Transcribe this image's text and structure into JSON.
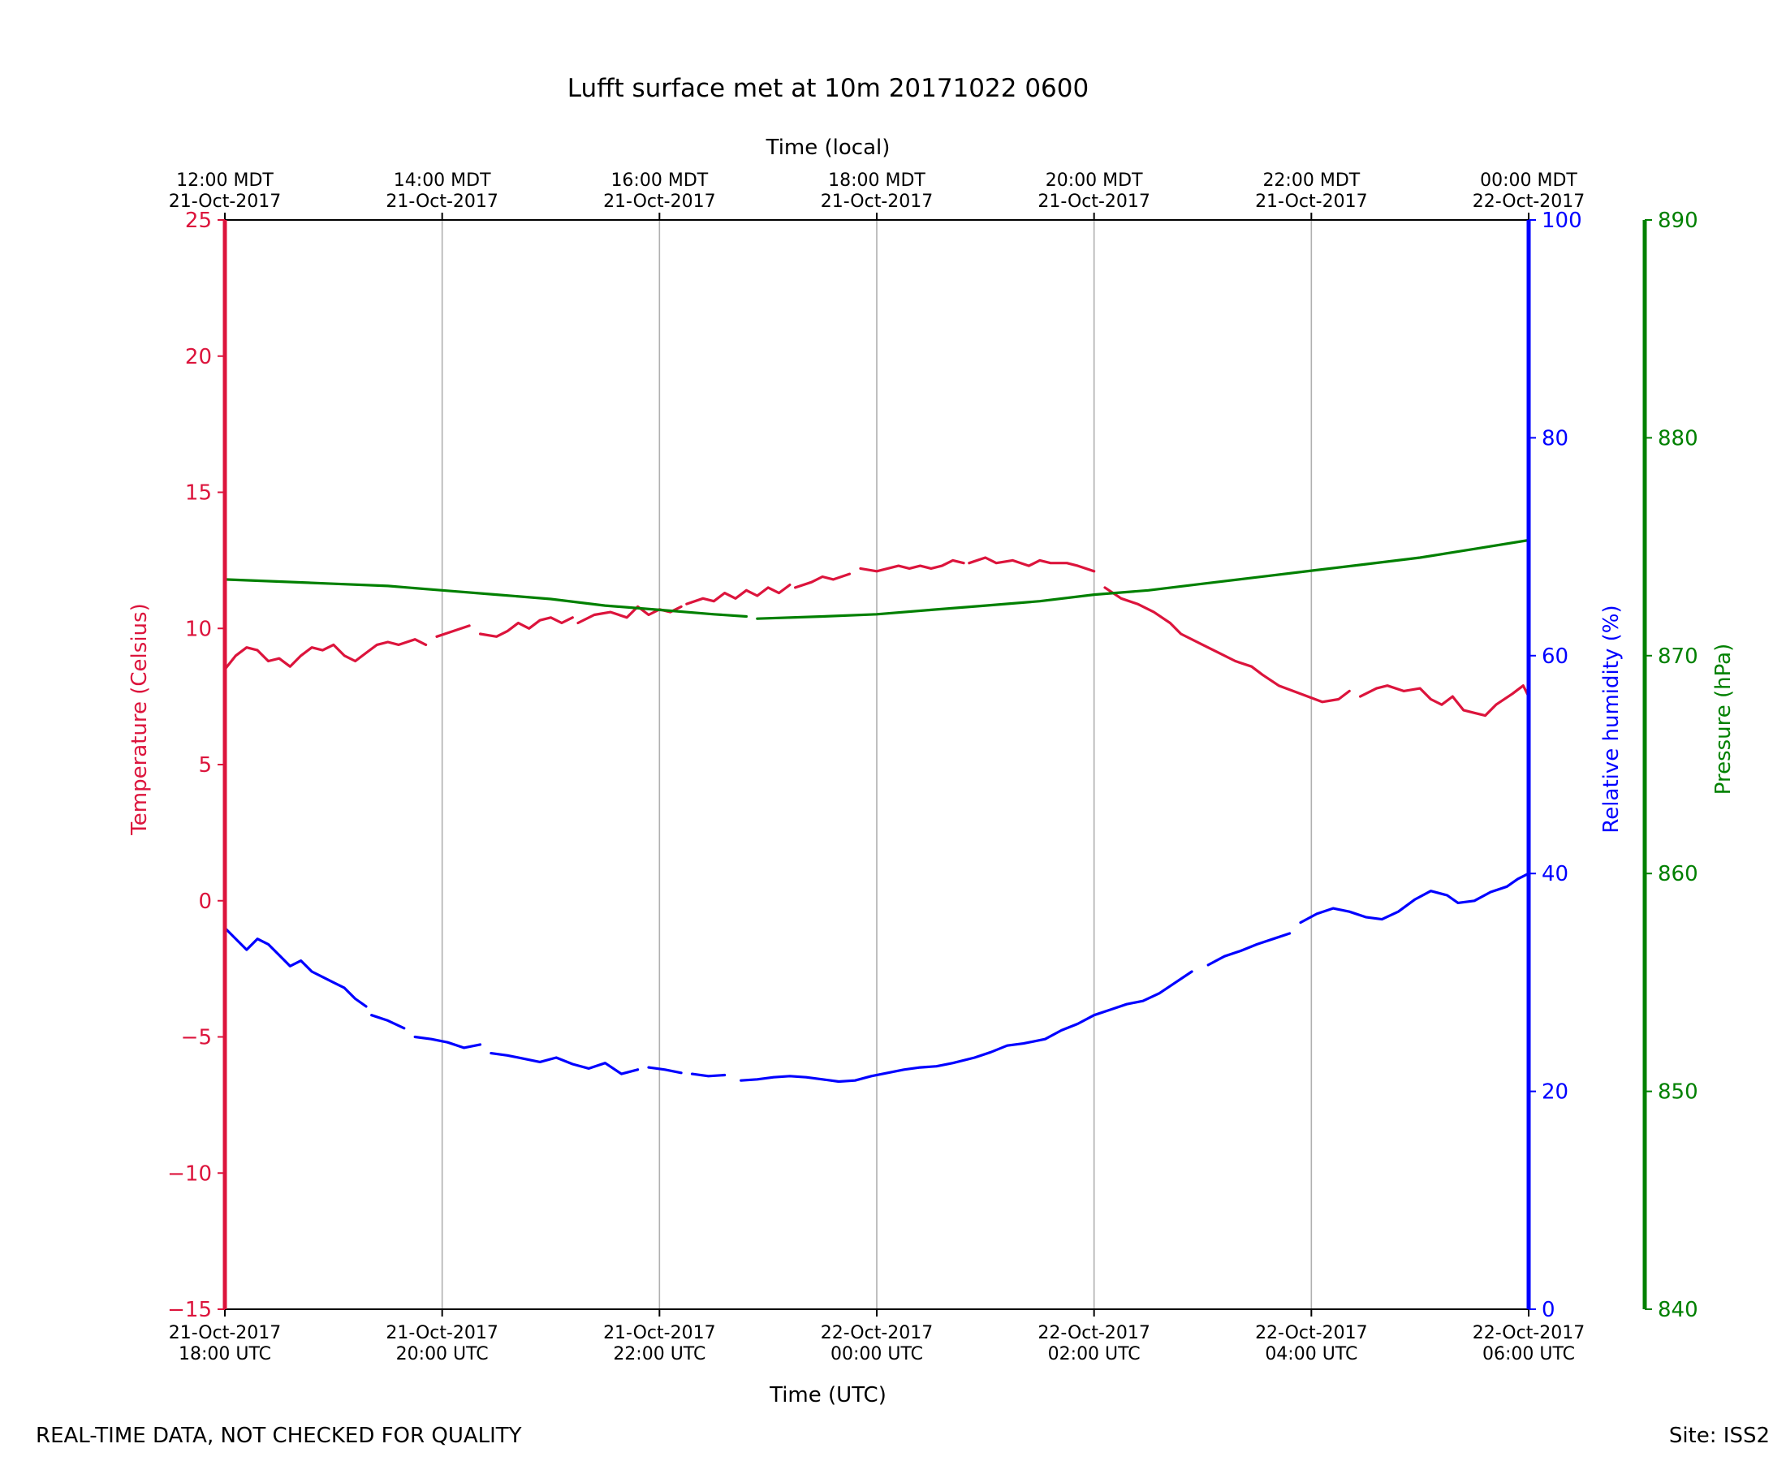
{
  "chart_data": {
    "type": "line",
    "title": "Lufft surface met at 10m 20171022 0600",
    "xlabel": "Time (UTC)",
    "x2label": "Time (local)",
    "x_range_hours": [
      0,
      12
    ],
    "x_ticks_hours": [
      0,
      2,
      4,
      6,
      8,
      10,
      12
    ],
    "x_tick_labels_utc": [
      [
        "21-Oct-2017",
        "18:00 UTC"
      ],
      [
        "21-Oct-2017",
        "20:00 UTC"
      ],
      [
        "21-Oct-2017",
        "22:00 UTC"
      ],
      [
        "22-Oct-2017",
        "00:00 UTC"
      ],
      [
        "22-Oct-2017",
        "02:00 UTC"
      ],
      [
        "22-Oct-2017",
        "04:00 UTC"
      ],
      [
        "22-Oct-2017",
        "06:00 UTC"
      ]
    ],
    "x_tick_labels_local": [
      [
        "12:00 MDT",
        "21-Oct-2017"
      ],
      [
        "14:00 MDT",
        "21-Oct-2017"
      ],
      [
        "16:00 MDT",
        "21-Oct-2017"
      ],
      [
        "18:00 MDT",
        "21-Oct-2017"
      ],
      [
        "20:00 MDT",
        "21-Oct-2017"
      ],
      [
        "22:00 MDT",
        "21-Oct-2017"
      ],
      [
        "00:00 MDT",
        "22-Oct-2017"
      ]
    ],
    "grid": "vertical",
    "axes": {
      "temperature": {
        "label": "Temperature (Celsius)",
        "range": [
          -15,
          25
        ],
        "ticks": [
          -15,
          -10,
          -5,
          0,
          5,
          10,
          15,
          20,
          25
        ],
        "tick_labels": [
          "−15",
          "−10",
          "−5",
          "0",
          "5",
          "10",
          "15",
          "20",
          "25"
        ],
        "color": "#dc143c",
        "side": "left"
      },
      "humidity": {
        "label": "Relative humidity (%)",
        "range": [
          0,
          100
        ],
        "ticks": [
          0,
          20,
          40,
          60,
          80,
          100
        ],
        "tick_labels": [
          "0",
          "20",
          "40",
          "60",
          "80",
          "100"
        ],
        "color": "#0000ff",
        "side": "right"
      },
      "pressure": {
        "label": "Pressure (hPa)",
        "range": [
          840,
          890
        ],
        "ticks": [
          840,
          850,
          860,
          870,
          880,
          890
        ],
        "tick_labels": [
          "840",
          "850",
          "860",
          "870",
          "880",
          "890"
        ],
        "color": "#008000",
        "side": "far-right"
      }
    },
    "series": [
      {
        "name": "Temperature",
        "axis": "temperature",
        "color": "#dc143c",
        "segments": [
          [
            [
              0,
              8.5
            ],
            [
              0.1,
              9.0
            ],
            [
              0.2,
              9.3
            ],
            [
              0.3,
              9.2
            ],
            [
              0.4,
              8.8
            ],
            [
              0.5,
              8.9
            ],
            [
              0.6,
              8.6
            ],
            [
              0.7,
              9.0
            ],
            [
              0.8,
              9.3
            ],
            [
              0.9,
              9.2
            ],
            [
              1.0,
              9.4
            ],
            [
              1.1,
              9.0
            ],
            [
              1.2,
              8.8
            ],
            [
              1.3,
              9.1
            ],
            [
              1.4,
              9.4
            ],
            [
              1.5,
              9.5
            ],
            [
              1.6,
              9.4
            ],
            [
              1.75,
              9.6
            ],
            [
              1.85,
              9.4
            ]
          ],
          [
            [
              1.95,
              9.7
            ],
            [
              2.1,
              9.9
            ],
            [
              2.25,
              10.1
            ]
          ],
          [
            [
              2.35,
              9.8
            ],
            [
              2.5,
              9.7
            ],
            [
              2.6,
              9.9
            ],
            [
              2.7,
              10.2
            ],
            [
              2.8,
              10.0
            ],
            [
              2.9,
              10.3
            ],
            [
              3.0,
              10.4
            ],
            [
              3.1,
              10.2
            ],
            [
              3.2,
              10.4
            ]
          ],
          [
            [
              3.25,
              10.2
            ],
            [
              3.4,
              10.5
            ],
            [
              3.55,
              10.6
            ],
            [
              3.7,
              10.4
            ],
            [
              3.8,
              10.8
            ],
            [
              3.9,
              10.5
            ],
            [
              4.0,
              10.7
            ],
            [
              4.1,
              10.6
            ],
            [
              4.2,
              10.8
            ]
          ],
          [
            [
              4.25,
              10.9
            ],
            [
              4.4,
              11.1
            ],
            [
              4.5,
              11.0
            ],
            [
              4.6,
              11.3
            ],
            [
              4.7,
              11.1
            ],
            [
              4.8,
              11.4
            ],
            [
              4.9,
              11.2
            ],
            [
              5.0,
              11.5
            ],
            [
              5.1,
              11.3
            ],
            [
              5.2,
              11.6
            ]
          ],
          [
            [
              5.25,
              11.5
            ],
            [
              5.4,
              11.7
            ],
            [
              5.5,
              11.9
            ],
            [
              5.6,
              11.8
            ],
            [
              5.75,
              12.0
            ]
          ],
          [
            [
              5.85,
              12.2
            ],
            [
              6.0,
              12.1
            ],
            [
              6.1,
              12.2
            ],
            [
              6.2,
              12.3
            ],
            [
              6.3,
              12.2
            ],
            [
              6.4,
              12.3
            ],
            [
              6.5,
              12.2
            ],
            [
              6.6,
              12.3
            ],
            [
              6.7,
              12.5
            ],
            [
              6.8,
              12.4
            ]
          ],
          [
            [
              6.85,
              12.4
            ],
            [
              7.0,
              12.6
            ],
            [
              7.1,
              12.4
            ],
            [
              7.25,
              12.5
            ],
            [
              7.4,
              12.3
            ],
            [
              7.5,
              12.5
            ],
            [
              7.6,
              12.4
            ],
            [
              7.75,
              12.4
            ],
            [
              7.85,
              12.3
            ],
            [
              8.0,
              12.1
            ]
          ],
          [
            [
              8.1,
              11.5
            ],
            [
              8.25,
              11.1
            ],
            [
              8.4,
              10.9
            ],
            [
              8.55,
              10.6
            ],
            [
              8.7,
              10.2
            ],
            [
              8.8,
              9.8
            ],
            [
              9.0,
              9.4
            ],
            [
              9.15,
              9.1
            ],
            [
              9.3,
              8.8
            ],
            [
              9.45,
              8.6
            ],
            [
              9.55,
              8.3
            ],
            [
              9.7,
              7.9
            ],
            [
              9.9,
              7.6
            ],
            [
              10.1,
              7.3
            ],
            [
              10.25,
              7.4
            ],
            [
              10.35,
              7.7
            ]
          ],
          [
            [
              10.45,
              7.5
            ],
            [
              10.6,
              7.8
            ],
            [
              10.7,
              7.9
            ],
            [
              10.85,
              7.7
            ],
            [
              11.0,
              7.8
            ],
            [
              11.1,
              7.4
            ],
            [
              11.2,
              7.2
            ],
            [
              11.3,
              7.5
            ],
            [
              11.4,
              7.0
            ],
            [
              11.5,
              6.9
            ],
            [
              11.6,
              6.8
            ],
            [
              11.7,
              7.2
            ],
            [
              11.85,
              7.6
            ],
            [
              11.95,
              7.9
            ],
            [
              12.0,
              7.5
            ]
          ]
        ]
      },
      {
        "name": "Relative humidity",
        "axis": "humidity",
        "color": "#0000ff",
        "segments": [
          [
            [
              0,
              35
            ],
            [
              0.1,
              34
            ],
            [
              0.2,
              33
            ],
            [
              0.3,
              34
            ],
            [
              0.4,
              33.5
            ],
            [
              0.5,
              32.5
            ],
            [
              0.6,
              31.5
            ],
            [
              0.7,
              32
            ],
            [
              0.8,
              31
            ],
            [
              0.9,
              30.5
            ],
            [
              1.0,
              30
            ],
            [
              1.1,
              29.5
            ],
            [
              1.2,
              28.5
            ],
            [
              1.3,
              27.8
            ]
          ],
          [
            [
              1.35,
              27.0
            ],
            [
              1.5,
              26.5
            ],
            [
              1.65,
              25.8
            ]
          ],
          [
            [
              1.75,
              25.0
            ],
            [
              1.9,
              24.8
            ],
            [
              2.05,
              24.5
            ],
            [
              2.2,
              24.0
            ],
            [
              2.35,
              24.3
            ]
          ],
          [
            [
              2.45,
              23.5
            ],
            [
              2.6,
              23.3
            ],
            [
              2.75,
              23.0
            ],
            [
              2.9,
              22.7
            ],
            [
              3.05,
              23.1
            ],
            [
              3.2,
              22.5
            ],
            [
              3.35,
              22.1
            ],
            [
              3.5,
              22.6
            ],
            [
              3.65,
              21.6
            ],
            [
              3.8,
              22.0
            ]
          ],
          [
            [
              3.9,
              22.2
            ],
            [
              4.05,
              22.0
            ],
            [
              4.2,
              21.7
            ]
          ],
          [
            [
              4.3,
              21.6
            ],
            [
              4.45,
              21.4
            ],
            [
              4.6,
              21.5
            ]
          ],
          [
            [
              4.75,
              21.0
            ],
            [
              4.9,
              21.1
            ],
            [
              5.05,
              21.3
            ],
            [
              5.2,
              21.4
            ],
            [
              5.35,
              21.3
            ],
            [
              5.5,
              21.1
            ],
            [
              5.65,
              20.9
            ],
            [
              5.8,
              21.0
            ],
            [
              5.95,
              21.4
            ],
            [
              6.1,
              21.7
            ],
            [
              6.25,
              22.0
            ],
            [
              6.4,
              22.2
            ],
            [
              6.55,
              22.3
            ],
            [
              6.7,
              22.6
            ],
            [
              6.9,
              23.1
            ],
            [
              7.05,
              23.6
            ],
            [
              7.2,
              24.2
            ],
            [
              7.35,
              24.4
            ],
            [
              7.55,
              24.8
            ],
            [
              7.7,
              25.6
            ],
            [
              7.85,
              26.2
            ],
            [
              8.0,
              27.0
            ],
            [
              8.15,
              27.5
            ],
            [
              8.3,
              28.0
            ],
            [
              8.45,
              28.3
            ],
            [
              8.6,
              29.0
            ],
            [
              8.75,
              30.0
            ],
            [
              8.9,
              31.0
            ]
          ],
          [
            [
              9.05,
              31.6
            ],
            [
              9.2,
              32.4
            ],
            [
              9.35,
              32.9
            ],
            [
              9.5,
              33.5
            ],
            [
              9.65,
              34.0
            ],
            [
              9.8,
              34.5
            ]
          ],
          [
            [
              9.9,
              35.5
            ],
            [
              10.05,
              36.3
            ],
            [
              10.2,
              36.8
            ],
            [
              10.35,
              36.5
            ],
            [
              10.5,
              36.0
            ],
            [
              10.65,
              35.8
            ],
            [
              10.8,
              36.5
            ],
            [
              10.95,
              37.6
            ],
            [
              11.1,
              38.4
            ],
            [
              11.25,
              38.0
            ],
            [
              11.35,
              37.3
            ],
            [
              11.5,
              37.5
            ],
            [
              11.65,
              38.3
            ],
            [
              11.8,
              38.8
            ],
            [
              11.9,
              39.5
            ],
            [
              12.0,
              40.0
            ]
          ]
        ]
      },
      {
        "name": "Pressure",
        "axis": "pressure",
        "color": "#008000",
        "segments": [
          [
            [
              0,
              873.5
            ],
            [
              0.5,
              873.4
            ],
            [
              1.0,
              873.3
            ],
            [
              1.5,
              873.2
            ],
            [
              2.0,
              873.0
            ],
            [
              2.5,
              872.8
            ],
            [
              3.0,
              872.6
            ],
            [
              3.5,
              872.3
            ],
            [
              4.0,
              872.1
            ],
            [
              4.5,
              871.9
            ],
            [
              4.8,
              871.8
            ]
          ],
          [
            [
              4.9,
              871.7
            ],
            [
              5.5,
              871.8
            ],
            [
              6.0,
              871.9
            ],
            [
              6.5,
              872.1
            ],
            [
              7.0,
              872.3
            ],
            [
              7.5,
              872.5
            ],
            [
              8.0,
              872.8
            ],
            [
              8.5,
              873.0
            ],
            [
              9.0,
              873.3
            ],
            [
              9.5,
              873.6
            ],
            [
              10.0,
              873.9
            ],
            [
              10.5,
              874.2
            ],
            [
              11.0,
              874.5
            ],
            [
              11.5,
              874.9
            ],
            [
              12.0,
              875.3
            ]
          ]
        ]
      }
    ],
    "annotations": [
      "REAL-TIME DATA, NOT CHECKED FOR QUALITY",
      "Site: ISS2"
    ]
  }
}
